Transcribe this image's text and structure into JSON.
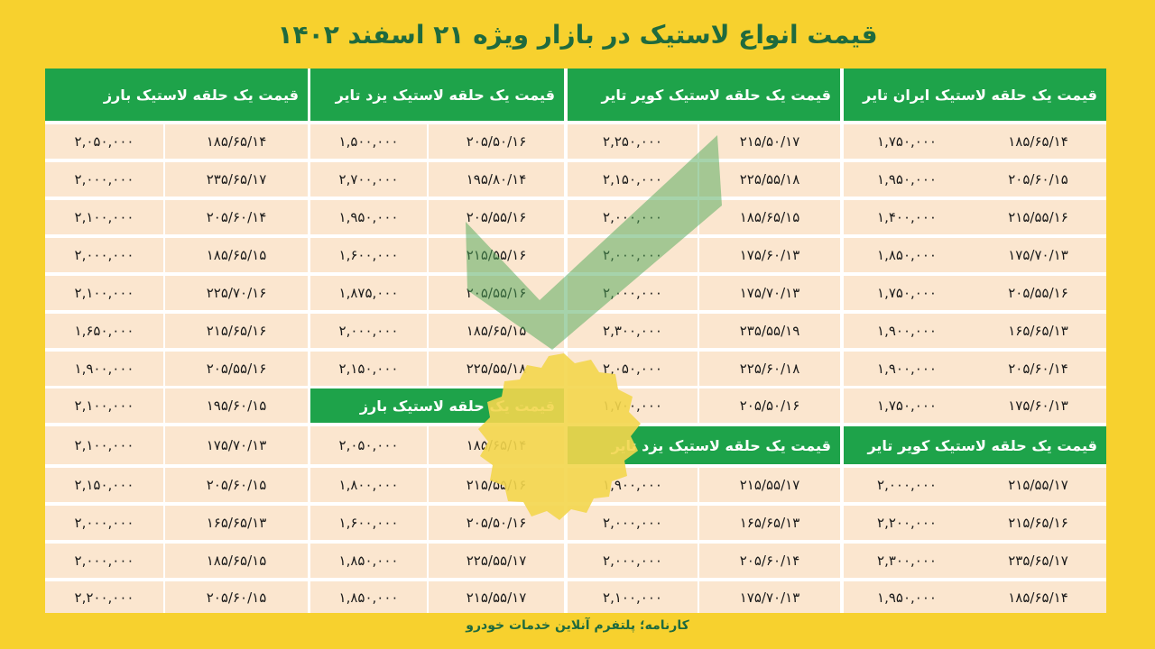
{
  "title": "قیمت انواع لاستیک در بازار ویژه  ۲۱ اسفند ۱۴۰۲",
  "footer": "کارنامه؛ پلتفرم آنلاین خدمات خودرو",
  "colors": {
    "background": "#f7d12e",
    "header_green": "#1ea34a",
    "cell_peach": "#fbe6cf",
    "title_green": "#1f6a3e"
  },
  "watermark": {
    "icon": "checkmark-seal-icon"
  },
  "sections": [
    {
      "header": "قیمت یک حلقه لاستیک ایران تایر",
      "rows": [
        [
          "۱۸۵/۶۵/۱۴",
          "۱,۷۵۰,۰۰۰"
        ],
        [
          "۲۰۵/۶۰/۱۵",
          "۱,۹۵۰,۰۰۰"
        ],
        [
          "۲۱۵/۵۵/۱۶",
          "۱,۴۰۰,۰۰۰"
        ],
        [
          "۱۷۵/۷۰/۱۳",
          "۱,۸۵۰,۰۰۰"
        ],
        [
          "۲۰۵/۵۵/۱۶",
          "۱,۷۵۰,۰۰۰"
        ],
        [
          "۱۶۵/۶۵/۱۳",
          "۱,۹۰۰,۰۰۰"
        ],
        [
          "۲۰۵/۶۰/۱۴",
          "۱,۹۰۰,۰۰۰"
        ],
        [
          "۱۷۵/۶۰/۱۳",
          "۱,۷۵۰,۰۰۰"
        ]
      ]
    },
    {
      "header": "قیمت یک حلقه لاستیک کویر تایر",
      "rows": [
        [
          "۲۱۵/۵۰/۱۷",
          "۲,۲۵۰,۰۰۰"
        ],
        [
          "۲۲۵/۵۵/۱۸",
          "۲,۱۵۰,۰۰۰"
        ],
        [
          "۱۸۵/۶۵/۱۵",
          "۲,۰۰۰,۰۰۰"
        ],
        [
          "۱۷۵/۶۰/۱۳",
          "۲,۰۰۰,۰۰۰"
        ],
        [
          "۱۷۵/۷۰/۱۳",
          "۲,۰۰۰,۰۰۰"
        ],
        [
          "۲۳۵/۵۵/۱۹",
          "۲,۳۰۰,۰۰۰"
        ],
        [
          "۲۲۵/۶۰/۱۸",
          "۲,۰۵۰,۰۰۰"
        ],
        [
          "۲۰۵/۵۰/۱۶",
          "۱,۷۰۰,۰۰۰"
        ]
      ]
    },
    {
      "header": "قیمت یک حلقه لاستیک یزد تایر",
      "rows": [
        [
          "۲۰۵/۵۰/۱۶",
          "۱,۵۰۰,۰۰۰"
        ],
        [
          "۱۹۵/۸۰/۱۴",
          "۲,۷۰۰,۰۰۰"
        ],
        [
          "۲۰۵/۵۵/۱۶",
          "۱,۹۵۰,۰۰۰"
        ],
        [
          "۲۱۵/۵۵/۱۶",
          "۱,۶۰۰,۰۰۰"
        ],
        [
          "۲۰۵/۵۵/۱۶",
          "۱,۸۷۵,۰۰۰"
        ],
        [
          "۱۸۵/۶۵/۱۵",
          "۲,۰۰۰,۰۰۰"
        ],
        [
          "۲۲۵/۵۵/۱۸",
          "۲,۱۵۰,۰۰۰"
        ]
      ]
    },
    {
      "header": "قیمت یک حلقه لاستیک بارز",
      "rows": [
        [
          "۱۸۵/۶۵/۱۴",
          "۲,۰۵۰,۰۰۰"
        ],
        [
          "۲۳۵/۶۵/۱۷",
          "۲,۰۰۰,۰۰۰"
        ],
        [
          "۲۰۵/۶۰/۱۴",
          "۲,۱۰۰,۰۰۰"
        ],
        [
          "۱۸۵/۶۵/۱۵",
          "۲,۰۰۰,۰۰۰"
        ],
        [
          "۲۲۵/۷۰/۱۶",
          "۲,۱۰۰,۰۰۰"
        ],
        [
          "۲۱۵/۶۵/۱۶",
          "۱,۶۵۰,۰۰۰"
        ],
        [
          "۲۰۵/۵۵/۱۶",
          "۱,۹۰۰,۰۰۰"
        ],
        [
          "۱۹۵/۶۰/۱۵",
          "۲,۱۰۰,۰۰۰"
        ],
        [
          "۱۷۵/۷۰/۱۳",
          "۲,۱۰۰,۰۰۰"
        ],
        [
          "۲۰۵/۶۰/۱۵",
          "۲,۱۵۰,۰۰۰"
        ],
        [
          "۱۶۵/۶۵/۱۳",
          "۲,۰۰۰,۰۰۰"
        ],
        [
          "۱۸۵/۶۵/۱۵",
          "۲,۰۰۰,۰۰۰"
        ],
        [
          "۲۰۵/۶۰/۱۵",
          "۲,۲۰۰,۰۰۰"
        ]
      ]
    },
    {
      "header": "قیمت یک حلقه لاستیک کویر تایر",
      "rows": [
        [
          "۲۱۵/۵۵/۱۷",
          "۲,۰۰۰,۰۰۰"
        ],
        [
          "۲۱۵/۶۵/۱۶",
          "۲,۲۰۰,۰۰۰"
        ],
        [
          "۲۳۵/۶۵/۱۷",
          "۲,۳۰۰,۰۰۰"
        ],
        [
          "۱۸۵/۶۵/۱۴",
          "۱,۹۵۰,۰۰۰"
        ]
      ]
    },
    {
      "header": "قیمت یک حلقه لاستیک یزد تایر",
      "rows": [
        [
          "۲۱۵/۵۵/۱۷",
          "۱,۹۰۰,۰۰۰"
        ],
        [
          "۱۶۵/۶۵/۱۳",
          "۲,۰۰۰,۰۰۰"
        ],
        [
          "۲۰۵/۶۰/۱۴",
          "۲,۰۰۰,۰۰۰"
        ],
        [
          "۱۷۵/۷۰/۱۳",
          "۲,۱۰۰,۰۰۰"
        ]
      ]
    },
    {
      "header": "قیمت یک حلقه لاستیک بارز",
      "rows": [
        [
          "۱۸۵/۶۵/۱۴",
          "۲,۰۵۰,۰۰۰"
        ],
        [
          "۲۱۵/۵۵/۱۶",
          "۱,۸۰۰,۰۰۰"
        ],
        [
          "۲۰۵/۵۰/۱۶",
          "۱,۶۰۰,۰۰۰"
        ],
        [
          "۲۲۵/۵۵/۱۷",
          "۱,۸۵۰,۰۰۰"
        ],
        [
          "۲۱۵/۵۵/۱۷",
          "۱,۸۵۰,۰۰۰"
        ]
      ]
    }
  ]
}
